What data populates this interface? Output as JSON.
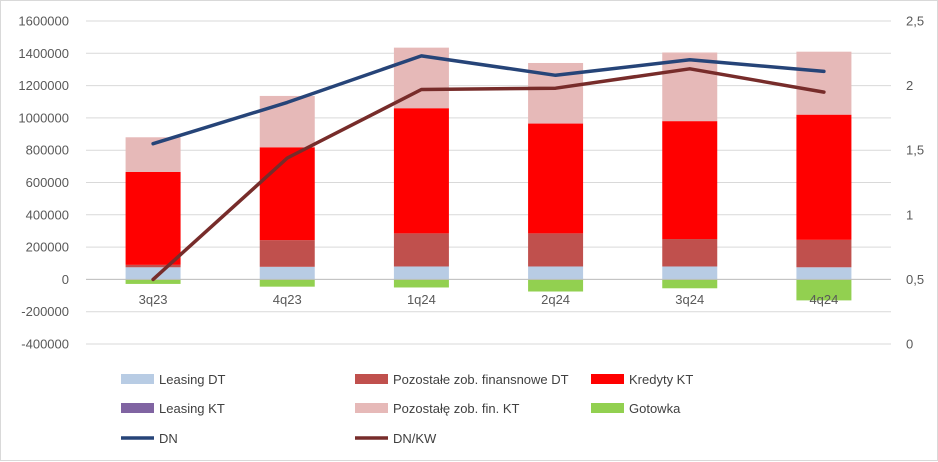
{
  "chart_data": {
    "type": "bar",
    "stacked": true,
    "categories": [
      "3q23",
      "4q23",
      "1q24",
      "2q24",
      "3q24",
      "4q24"
    ],
    "series": [
      {
        "name": "Leasing DT",
        "kind": "bar",
        "axis": "left",
        "color": "#b8cce4",
        "values": [
          75000,
          78000,
          80000,
          80000,
          80000,
          75000
        ]
      },
      {
        "name": "Pozostałe zob. finansnowe DT",
        "kind": "bar",
        "axis": "left",
        "color": "#c0504d",
        "values": [
          15000,
          165000,
          205000,
          205000,
          170000,
          170000
        ]
      },
      {
        "name": "Kredyty KT",
        "kind": "bar",
        "axis": "left",
        "color": "#ff0000",
        "values": [
          575000,
          575000,
          775000,
          680000,
          730000,
          775000
        ]
      },
      {
        "name": "Leasing KT",
        "kind": "bar",
        "axis": "left",
        "color": "#8064a2",
        "values": [
          0,
          0,
          0,
          0,
          0,
          0
        ]
      },
      {
        "name": "Pozostałę zob. fin. KT",
        "kind": "bar",
        "axis": "left",
        "color": "#e6b9b8",
        "values": [
          215000,
          318000,
          375000,
          375000,
          425000,
          390000
        ]
      },
      {
        "name": "Gotowka",
        "kind": "bar",
        "axis": "left",
        "color": "#92d050",
        "values": [
          -28000,
          -45000,
          -50000,
          -75000,
          -55000,
          -130000
        ]
      },
      {
        "name": "DN",
        "kind": "line",
        "axis": "right",
        "color": "#264478",
        "values": [
          1.55,
          1.87,
          2.23,
          2.08,
          2.2,
          2.11
        ]
      },
      {
        "name": "DN/KW",
        "kind": "line",
        "axis": "right",
        "color": "#772c2a",
        "values": [
          0.5,
          1.44,
          1.97,
          1.98,
          2.13,
          1.95
        ]
      }
    ],
    "y_left": {
      "min": -400000,
      "max": 1600000,
      "ticks": [
        "1600000",
        "1400000",
        "1200000",
        "1000000",
        "800000",
        "600000",
        "400000",
        "200000",
        "0",
        "-200000",
        "-400000"
      ]
    },
    "y_right": {
      "min": 0,
      "max": 2.5,
      "ticks": [
        "2,5",
        "2",
        "1,5",
        "1",
        "0,5",
        "0"
      ]
    },
    "grid": true,
    "legend_position": "bottom"
  }
}
